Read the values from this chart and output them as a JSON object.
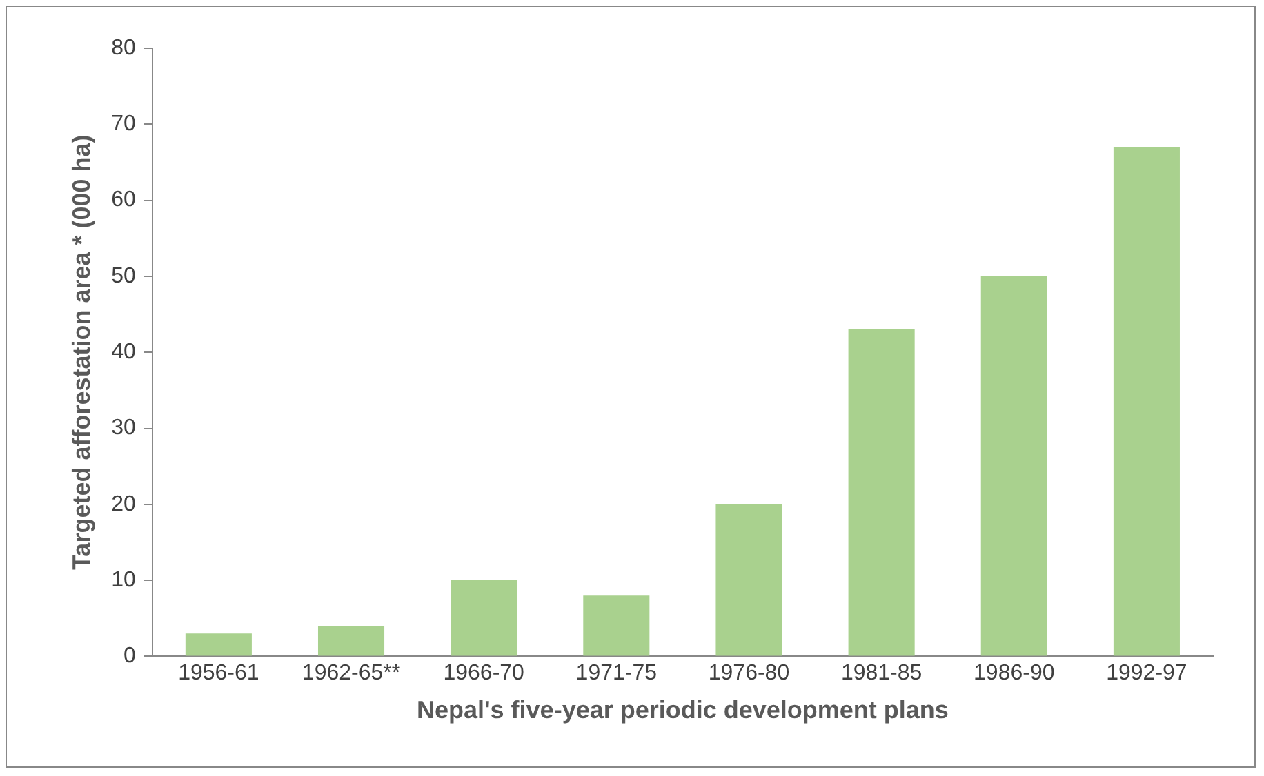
{
  "chart_data": {
    "type": "bar",
    "xlabel": "Nepal's five-year periodic development plans",
    "ylabel": "Targeted afforestation area * (000 ha)",
    "categories": [
      "1956-61",
      "1962-65**",
      "1966-70",
      "1971-75",
      "1976-80",
      "1981-85",
      "1986-90",
      "1992-97"
    ],
    "values": [
      3,
      4,
      10,
      8,
      20,
      43,
      50,
      67
    ],
    "color": "#a9d18e",
    "ylim": [
      0,
      80
    ],
    "yticks": [
      0,
      10,
      20,
      30,
      40,
      50,
      60,
      70,
      80
    ],
    "grid": false,
    "legend": false
  }
}
